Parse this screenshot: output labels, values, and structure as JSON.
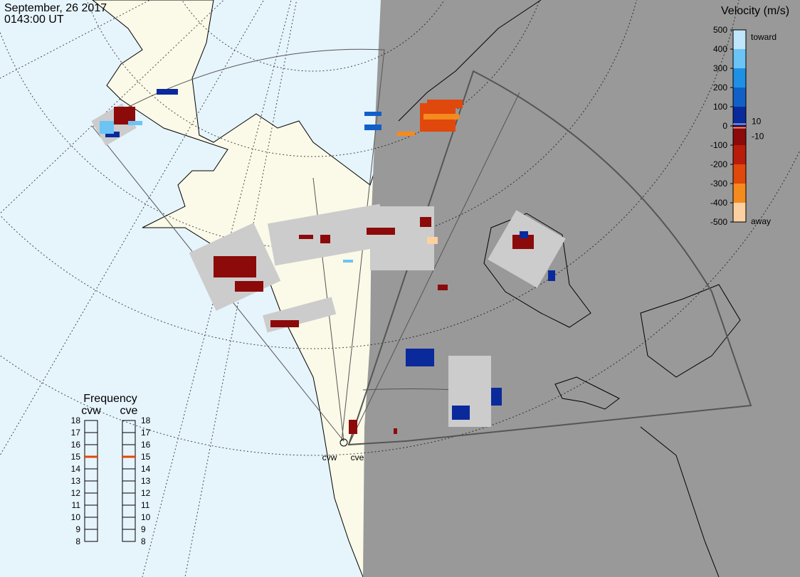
{
  "header": {
    "date": "September, 26 2017",
    "time": "0143:00 UT"
  },
  "colorbar": {
    "title": "Velocity (m/s)",
    "lim": [
      -500,
      500
    ],
    "ticks": [
      500,
      400,
      300,
      200,
      100,
      0,
      -100,
      -200,
      -300,
      -400,
      -500
    ],
    "inner_ticks": [
      10,
      -10
    ],
    "colors": [
      "#bfe6fb",
      "#6cc4f5",
      "#1e90e6",
      "#1160c8",
      "#0a2a9c",
      "#8c0a0a",
      "#b81c0a",
      "#e0480c",
      "#f58a1e",
      "#fcd0a0"
    ],
    "toward": "toward",
    "away": "away"
  },
  "frequency": {
    "title": "Frequency",
    "lim": [
      8,
      18
    ],
    "ticks": [
      18,
      17,
      16,
      15,
      14,
      13,
      12,
      11,
      10,
      9,
      8
    ],
    "marker_color": "#e0480c",
    "radars": [
      {
        "name": "cvw",
        "value": 15
      },
      {
        "name": "cve",
        "value": 15
      }
    ]
  }
}
